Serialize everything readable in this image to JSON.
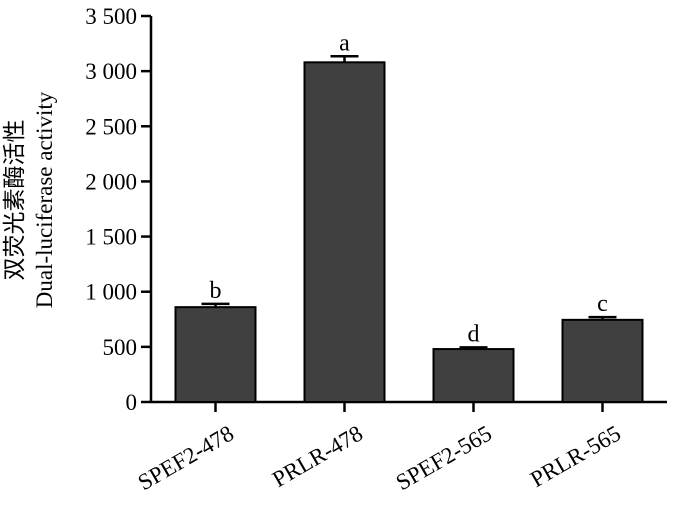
{
  "chart_data": {
    "type": "bar",
    "categories": [
      "SPEF2-478",
      "PRLR-478",
      "SPEF2-565",
      "PRLR-565"
    ],
    "values": [
      860,
      3080,
      480,
      745
    ],
    "errors": [
      30,
      55,
      15,
      25
    ],
    "significance": [
      "b",
      "a",
      "d",
      "c"
    ],
    "ylabel_cn": "双荧光素酶活性",
    "ylabel_en": "Dual-luciferase activity",
    "ylim": [
      0,
      3500
    ],
    "yticks": [
      0,
      500,
      1000,
      1500,
      2000,
      2500,
      3000,
      3500
    ],
    "ytick_labels": [
      "0",
      "500",
      "1 000",
      "1 500",
      "2 000",
      "2 500",
      "3 000",
      "3 500"
    ],
    "bar_color": "#404040",
    "grid": false
  }
}
